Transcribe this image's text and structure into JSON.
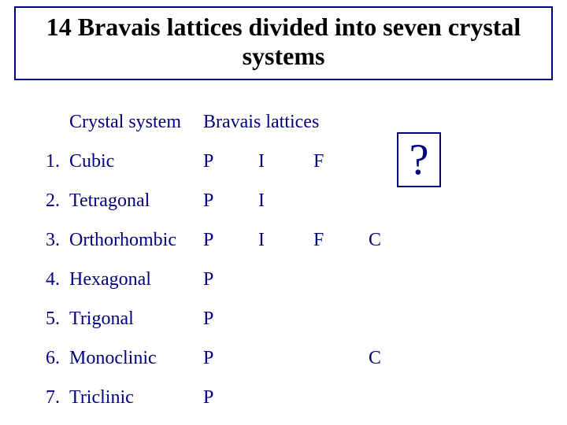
{
  "title": "14 Bravais lattices divided into seven crystal systems",
  "headers": {
    "crystal_system": "Crystal system",
    "bravais_lattices": "Bravais lattices"
  },
  "question_mark": "?",
  "colors": {
    "text": "#000080",
    "title_text": "#000000",
    "border": "#000080",
    "background": "#ffffff"
  },
  "rows": [
    {
      "num": "1.",
      "name": "Cubic",
      "p": "P",
      "i": "I",
      "f": "F",
      "c": ""
    },
    {
      "num": "2.",
      "name": "Tetragonal",
      "p": "P",
      "i": "I",
      "f": "",
      "c": ""
    },
    {
      "num": "3.",
      "name": "Orthorhombic",
      "p": "P",
      "i": "I",
      "f": "F",
      "c": "C"
    },
    {
      "num": "4.",
      "name": "Hexagonal",
      "p": "P",
      "i": "",
      "f": "",
      "c": ""
    },
    {
      "num": "5.",
      "name": "Trigonal",
      "p": "P",
      "i": "",
      "f": "",
      "c": ""
    },
    {
      "num": "6.",
      "name": "Monoclinic",
      "p": "P",
      "i": "",
      "f": "",
      "c": "C"
    },
    {
      "num": "7.",
      "name": "Triclinic",
      "p": "P",
      "i": "",
      "f": "",
      "c": ""
    }
  ]
}
